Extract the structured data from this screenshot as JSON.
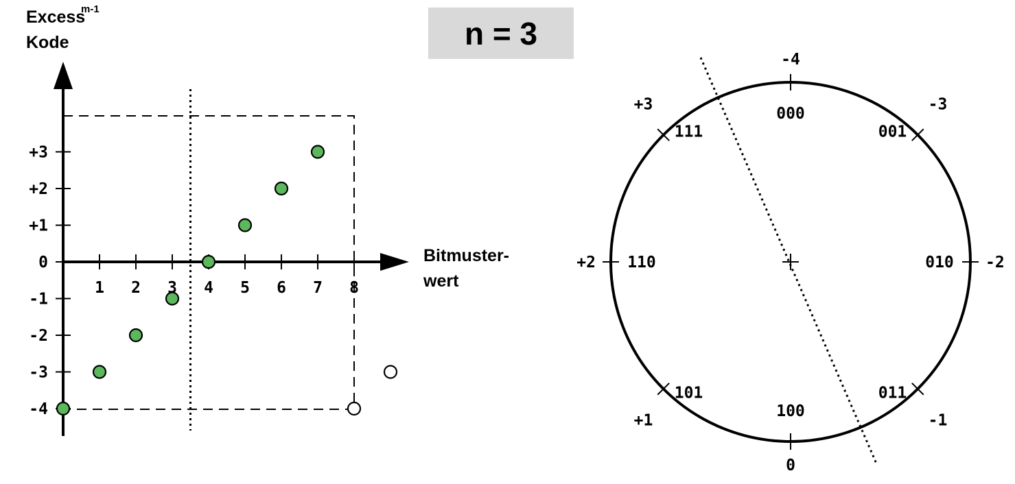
{
  "title": "n = 3",
  "plot": {
    "y_axis_label": "Excess",
    "y_axis_label_sup": "m-1",
    "y_axis_label_line2": "Kode",
    "x_axis_label_line1": "Bitmuster-",
    "x_axis_label_line2": "wert",
    "x_ticks": [
      "1",
      "2",
      "3",
      "4",
      "5",
      "6",
      "7",
      "8"
    ],
    "y_ticks": [
      "+3",
      "+2",
      "+1",
      "0",
      "-1",
      "-2",
      "-3",
      "-4"
    ],
    "filled_points": [
      {
        "x": 0,
        "y": -4
      },
      {
        "x": 1,
        "y": -3
      },
      {
        "x": 2,
        "y": -2
      },
      {
        "x": 3,
        "y": -1
      },
      {
        "x": 4,
        "y": 0
      },
      {
        "x": 5,
        "y": 1
      },
      {
        "x": 6,
        "y": 2
      },
      {
        "x": 7,
        "y": 3
      }
    ],
    "open_points": [
      {
        "x": 8,
        "y": -4
      },
      {
        "x": 9,
        "y": -3
      }
    ],
    "point_color": "#5cb85c",
    "split_line_x": 3.5
  },
  "circle": {
    "positions": [
      {
        "bits": "000",
        "value": "-4"
      },
      {
        "bits": "001",
        "value": "-3"
      },
      {
        "bits": "010",
        "value": "-2"
      },
      {
        "bits": "011",
        "value": "-1"
      },
      {
        "bits": "100",
        "value": "0"
      },
      {
        "bits": "101",
        "value": "+1"
      },
      {
        "bits": "110",
        "value": "+2"
      },
      {
        "bits": "111",
        "value": "+3"
      }
    ]
  }
}
